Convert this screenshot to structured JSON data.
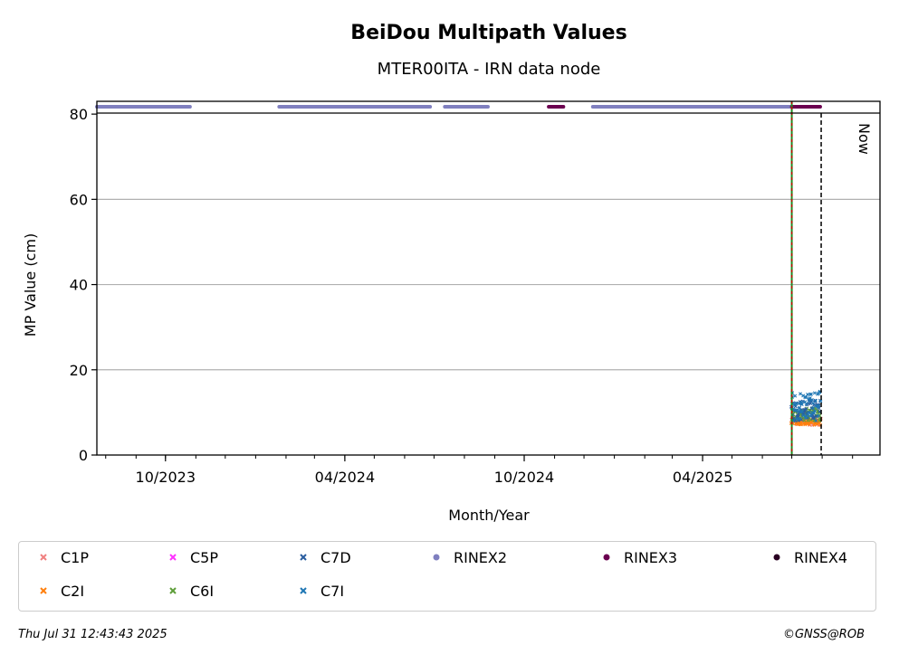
{
  "chart_data": {
    "type": "scatter",
    "title": "BeiDou Multipath Values",
    "subtitle": "MTER00ITA - IRN data node",
    "xlabel": "Month/Year",
    "ylabel": "MP Value (cm)",
    "xlim": [
      "2023-07-23",
      "2025-09-29"
    ],
    "ylim": [
      0,
      83
    ],
    "yticks": [
      0,
      20,
      40,
      60,
      80
    ],
    "xticks": [
      {
        "date": "2023-10-01",
        "label": "10/2023"
      },
      {
        "date": "2024-04-01",
        "label": "04/2024"
      },
      {
        "date": "2024-10-01",
        "label": "10/2024"
      },
      {
        "date": "2025-04-01",
        "label": "04/2025"
      }
    ],
    "grid": "y",
    "now_label": "Now",
    "now_date": "2025-07-31",
    "marker_line_date": "2025-07-01",
    "series": [
      {
        "name": "C1P",
        "color": "#f08080",
        "marker": "x",
        "date_range": [
          "2025-07-01",
          "2025-07-30"
        ],
        "y_range": [
          7,
          9
        ]
      },
      {
        "name": "C2I",
        "color": "#ff7f0e",
        "marker": "x",
        "date_range": [
          "2025-07-01",
          "2025-07-30"
        ],
        "y_range": [
          7,
          8.5
        ]
      },
      {
        "name": "C5P",
        "color": "#ff33ff",
        "marker": "x",
        "date_range": [],
        "y_range": []
      },
      {
        "name": "C6I",
        "color": "#5e9e3a",
        "marker": "x",
        "date_range": [
          "2025-07-01",
          "2025-07-30"
        ],
        "y_range": [
          8,
          11
        ]
      },
      {
        "name": "C7D",
        "color": "#2a5d9f",
        "marker": "x",
        "date_range": [
          "2025-07-01",
          "2025-07-30"
        ],
        "y_range": [
          8,
          13
        ]
      },
      {
        "name": "C7I",
        "color": "#1f77b4",
        "marker": "x",
        "date_range": [
          "2025-07-01",
          "2025-07-30"
        ],
        "y_range": [
          8,
          15
        ]
      }
    ],
    "rinex_availability": [
      {
        "name": "RINEX2",
        "color": "#7f7fbf",
        "periods": [
          [
            "2023-07-23",
            "2023-10-26"
          ],
          [
            "2024-01-25",
            "2024-06-27"
          ],
          [
            "2024-07-12",
            "2024-08-25"
          ],
          [
            "2024-12-10",
            "2025-06-30"
          ]
        ]
      },
      {
        "name": "RINEX3",
        "color": "#6b0050",
        "periods": [
          [
            "2024-10-26",
            "2024-11-10"
          ],
          [
            "2025-07-01",
            "2025-07-30"
          ]
        ]
      },
      {
        "name": "RINEX4",
        "color": "#2a0022",
        "periods": []
      }
    ]
  },
  "legend": [
    {
      "label": "C1P",
      "color": "#f08080",
      "marker": "x"
    },
    {
      "label": "C5P",
      "color": "#ff33ff",
      "marker": "x"
    },
    {
      "label": "C7D",
      "color": "#2a5d9f",
      "marker": "x"
    },
    {
      "label": "RINEX2",
      "color": "#7f7fbf",
      "marker": "dot"
    },
    {
      "label": "RINEX3",
      "color": "#6b0050",
      "marker": "dot"
    },
    {
      "label": "RINEX4",
      "color": "#2a0022",
      "marker": "dot"
    },
    {
      "label": "C2I",
      "color": "#ff7f0e",
      "marker": "x"
    },
    {
      "label": "C6I",
      "color": "#5e9e3a",
      "marker": "x"
    },
    {
      "label": "C7I",
      "color": "#1f77b4",
      "marker": "x"
    }
  ],
  "footer": {
    "timestamp": "Thu Jul 31 12:43:43 2025",
    "copyright": "©GNSS@ROB"
  }
}
